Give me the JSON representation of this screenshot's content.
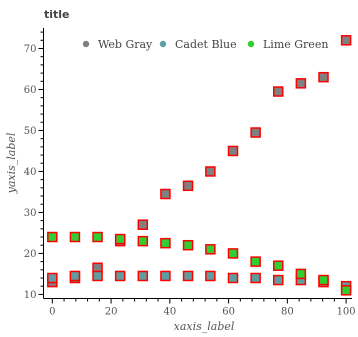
{
  "chart_data": {
    "type": "scatter",
    "title": "title",
    "xlabel": "xaxis_label",
    "ylabel": "yaxis_label",
    "xlim": [
      -3,
      102
    ],
    "ylim": [
      9,
      75
    ],
    "x_ticks": [
      0,
      20,
      40,
      60,
      80,
      100
    ],
    "y_ticks": [
      10,
      20,
      30,
      40,
      50,
      60,
      70
    ],
    "grid": false,
    "legend_position": "top-right",
    "marker": "square",
    "marker_edge_color": "#ff0000",
    "x": [
      0,
      7.7,
      15.4,
      23.1,
      30.8,
      38.5,
      46.2,
      53.8,
      61.5,
      69.2,
      76.9,
      84.6,
      92.3,
      100
    ],
    "series": [
      {
        "name": "Web Gray",
        "color": "#808080",
        "values": [
          13,
          14,
          16.5,
          23,
          27,
          34.5,
          36.5,
          40,
          45,
          49.5,
          59.5,
          61.5,
          63,
          72
        ]
      },
      {
        "name": "Cadet Blue",
        "color": "#5f9ea0",
        "values": [
          14,
          14.5,
          14.5,
          14.5,
          14.5,
          14.5,
          14.5,
          14.5,
          14,
          14,
          13.5,
          13.5,
          13,
          12
        ]
      },
      {
        "name": "Lime Green",
        "color": "#32cd32",
        "values": [
          24,
          24,
          24,
          23.5,
          23,
          22.5,
          22,
          21,
          20,
          18,
          17,
          15,
          13.5,
          11
        ]
      }
    ]
  }
}
